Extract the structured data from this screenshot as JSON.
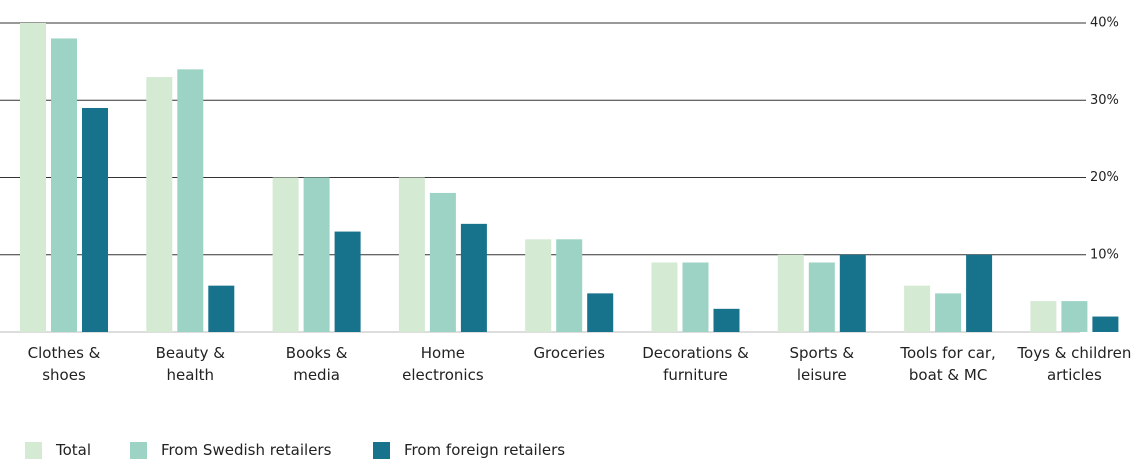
{
  "chart_data": {
    "type": "bar",
    "categories": [
      "Clothes &\nshoes",
      "Beauty &\nhealth",
      "Books &\nmedia",
      "Home\nelectronics",
      "Groceries",
      "Decorations &\nfurniture",
      "Sports &\nleisure",
      "Tools for car,\nboat & MC",
      "Toys & children\narticles"
    ],
    "series": [
      {
        "name": "Total",
        "color": "#d4ead3",
        "values": [
          40,
          33,
          20,
          20,
          12,
          9,
          10,
          6,
          4
        ]
      },
      {
        "name": "From Swedish retailers",
        "color": "#9dd3c4",
        "values": [
          38,
          34,
          20,
          18,
          12,
          9,
          9,
          5,
          4
        ]
      },
      {
        "name": "From foreign retailers",
        "color": "#17728c",
        "values": [
          29,
          6,
          13,
          14,
          5,
          3,
          10,
          10,
          2
        ]
      }
    ],
    "ylim": [
      0,
      40
    ],
    "yticks": [
      {
        "value": 10,
        "label": "10%"
      },
      {
        "value": 20,
        "label": "20%"
      },
      {
        "value": 30,
        "label": "30%"
      },
      {
        "value": 40,
        "label": "40%"
      }
    ],
    "grid": true,
    "legend": "bottom"
  }
}
